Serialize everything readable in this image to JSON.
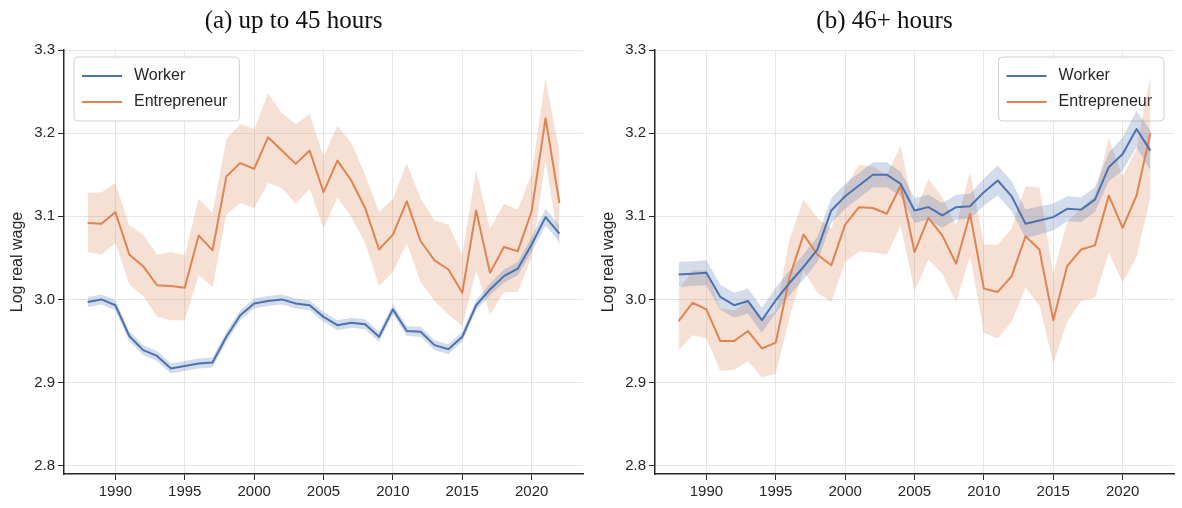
{
  "chart_data": [
    {
      "type": "line",
      "title": "(a) up to 45 hours",
      "ylabel": "Log real wage",
      "x": [
        1988,
        1989,
        1990,
        1991,
        1992,
        1993,
        1994,
        1995,
        1996,
        1997,
        1998,
        1999,
        2000,
        2001,
        2002,
        2003,
        2004,
        2005,
        2006,
        2007,
        2008,
        2009,
        2010,
        2011,
        2012,
        2013,
        2014,
        2015,
        2016,
        2017,
        2018,
        2019,
        2020,
        2021,
        2022
      ],
      "xlim": [
        1986.3,
        2023.7
      ],
      "xticks": [
        1990,
        1995,
        2000,
        2005,
        2010,
        2015,
        2020
      ],
      "ylim": [
        2.79,
        3.3
      ],
      "yticks": [
        {
          "value": 2.8,
          "label": "2.8"
        },
        {
          "value": 2.9,
          "label": "2.9"
        },
        {
          "value": 3.0,
          "label": "3.0"
        },
        {
          "value": 3.1,
          "label": "3.1"
        },
        {
          "value": 3.2,
          "label": "3.2"
        },
        {
          "value": 3.3,
          "label": "3.3"
        }
      ],
      "grid": true,
      "legend": "top left",
      "marker": "none",
      "line_style": "solid",
      "series": [
        {
          "name": "Worker",
          "color": "#4c72b0",
          "values": [
            2.997,
            3.0,
            2.993,
            2.956,
            2.939,
            2.932,
            2.917,
            2.92,
            2.923,
            2.924,
            2.955,
            2.981,
            2.995,
            2.998,
            3.0,
            2.995,
            2.993,
            2.979,
            2.969,
            2.972,
            2.97,
            2.955,
            2.988,
            2.962,
            2.961,
            2.945,
            2.94,
            2.955,
            2.993,
            3.012,
            3.028,
            3.037,
            3.066,
            3.099,
            3.079
          ],
          "lower": [
            2.991,
            2.994,
            2.987,
            2.95,
            2.933,
            2.926,
            2.911,
            2.914,
            2.917,
            2.918,
            2.949,
            2.975,
            2.989,
            2.992,
            2.994,
            2.989,
            2.987,
            2.973,
            2.963,
            2.966,
            2.964,
            2.949,
            2.982,
            2.956,
            2.955,
            2.939,
            2.934,
            2.949,
            2.987,
            3.005,
            3.02,
            3.029,
            3.057,
            3.089,
            3.069
          ],
          "upper": [
            3.003,
            3.006,
            2.999,
            2.962,
            2.945,
            2.938,
            2.923,
            2.926,
            2.929,
            2.93,
            2.961,
            2.987,
            3.001,
            3.004,
            3.006,
            3.001,
            2.999,
            2.985,
            2.975,
            2.978,
            2.976,
            2.961,
            2.994,
            2.968,
            2.967,
            2.951,
            2.946,
            2.961,
            2.999,
            3.019,
            3.036,
            3.045,
            3.075,
            3.109,
            3.089
          ]
        },
        {
          "name": "Entrepreneur",
          "color": "#dd8452",
          "values": [
            3.092,
            3.091,
            3.105,
            3.054,
            3.04,
            3.017,
            3.016,
            3.014,
            3.077,
            3.059,
            3.148,
            3.164,
            3.157,
            3.195,
            3.179,
            3.163,
            3.179,
            3.129,
            3.167,
            3.143,
            3.11,
            3.06,
            3.078,
            3.118,
            3.07,
            3.047,
            3.036,
            3.008,
            3.107,
            3.032,
            3.063,
            3.058,
            3.106,
            3.218,
            3.116
          ],
          "lower": [
            3.057,
            3.054,
            3.068,
            3.018,
            3.004,
            2.979,
            2.975,
            2.975,
            3.029,
            3.015,
            3.102,
            3.116,
            3.11,
            3.14,
            3.134,
            3.115,
            3.133,
            3.085,
            3.123,
            3.099,
            3.068,
            3.016,
            3.033,
            3.067,
            3.021,
            2.998,
            2.982,
            2.968,
            3.035,
            2.982,
            3.009,
            3.009,
            3.05,
            3.168,
            3.06
          ],
          "upper": [
            3.128,
            3.129,
            3.14,
            3.089,
            3.078,
            3.054,
            3.057,
            3.053,
            3.121,
            3.104,
            3.193,
            3.211,
            3.205,
            3.248,
            3.224,
            3.211,
            3.223,
            3.172,
            3.209,
            3.188,
            3.15,
            3.105,
            3.121,
            3.164,
            3.121,
            3.095,
            3.09,
            3.054,
            3.155,
            3.085,
            3.115,
            3.108,
            3.151,
            3.266,
            3.177
          ]
        }
      ]
    },
    {
      "type": "line",
      "title": "(b) 46+ hours",
      "ylabel": "Log real wage",
      "x": [
        1988,
        1989,
        1990,
        1991,
        1992,
        1993,
        1994,
        1995,
        1996,
        1997,
        1998,
        1999,
        2000,
        2001,
        2002,
        2003,
        2004,
        2005,
        2006,
        2007,
        2008,
        2009,
        2010,
        2011,
        2012,
        2013,
        2014,
        2015,
        2016,
        2017,
        2018,
        2019,
        2020,
        2021,
        2022
      ],
      "xlim": [
        1986.3,
        2023.7
      ],
      "xticks": [
        1990,
        1995,
        2000,
        2005,
        2010,
        2015,
        2020
      ],
      "ylim": [
        2.79,
        3.3
      ],
      "yticks": [
        {
          "value": 2.8,
          "label": "2.8"
        },
        {
          "value": 2.9,
          "label": "2.9"
        },
        {
          "value": 3.0,
          "label": "3.0"
        },
        {
          "value": 3.1,
          "label": "3.1"
        },
        {
          "value": 3.2,
          "label": "3.2"
        },
        {
          "value": 3.3,
          "label": "3.3"
        }
      ],
      "grid": true,
      "legend": "top right",
      "marker": "none",
      "line_style": "solid",
      "series": [
        {
          "name": "Worker",
          "color": "#4c72b0",
          "values": [
            3.03,
            3.031,
            3.032,
            3.003,
            2.993,
            2.998,
            2.975,
            2.999,
            3.02,
            3.039,
            3.06,
            3.107,
            3.124,
            3.137,
            3.15,
            3.15,
            3.139,
            3.107,
            3.111,
            3.101,
            3.111,
            3.112,
            3.129,
            3.143,
            3.124,
            3.091,
            3.095,
            3.099,
            3.109,
            3.108,
            3.12,
            3.159,
            3.175,
            3.205,
            3.179
          ],
          "lower": [
            3.015,
            3.016,
            3.017,
            2.988,
            2.978,
            2.983,
            2.96,
            2.984,
            3.005,
            3.024,
            3.045,
            3.092,
            3.109,
            3.122,
            3.135,
            3.135,
            3.124,
            3.092,
            3.096,
            3.086,
            3.096,
            3.097,
            3.113,
            3.125,
            3.106,
            3.074,
            3.078,
            3.083,
            3.094,
            3.093,
            3.105,
            3.142,
            3.155,
            3.183,
            3.155
          ],
          "upper": [
            3.045,
            3.046,
            3.047,
            3.018,
            3.008,
            3.013,
            2.99,
            3.014,
            3.035,
            3.054,
            3.075,
            3.122,
            3.139,
            3.152,
            3.165,
            3.165,
            3.154,
            3.122,
            3.126,
            3.116,
            3.126,
            3.127,
            3.145,
            3.161,
            3.142,
            3.108,
            3.112,
            3.115,
            3.124,
            3.123,
            3.135,
            3.176,
            3.195,
            3.227,
            3.203
          ]
        },
        {
          "name": "Entrepreneur",
          "color": "#dd8452",
          "values": [
            2.974,
            2.996,
            2.988,
            2.95,
            2.95,
            2.962,
            2.941,
            2.948,
            3.027,
            3.078,
            3.054,
            3.041,
            3.09,
            3.111,
            3.11,
            3.103,
            3.137,
            3.057,
            3.098,
            3.077,
            3.043,
            3.103,
            3.013,
            3.009,
            3.028,
            3.076,
            3.06,
            2.975,
            3.04,
            3.06,
            3.065,
            3.125,
            3.086,
            3.125,
            3.2
          ],
          "lower": [
            2.939,
            2.957,
            2.953,
            2.914,
            2.915,
            2.926,
            2.906,
            2.911,
            2.979,
            3.035,
            3.008,
            2.997,
            3.045,
            3.058,
            3.056,
            3.054,
            3.089,
            3.01,
            3.048,
            3.031,
            2.997,
            3.052,
            2.96,
            2.953,
            2.973,
            3.014,
            2.993,
            2.923,
            2.973,
            2.998,
            3.002,
            3.056,
            3.02,
            3.051,
            3.123
          ],
          "upper": [
            3.012,
            3.035,
            3.035,
            2.989,
            2.987,
            2.998,
            2.977,
            2.985,
            3.073,
            3.12,
            3.098,
            3.085,
            3.135,
            3.162,
            3.16,
            3.15,
            3.185,
            3.102,
            3.145,
            3.123,
            3.089,
            3.154,
            3.066,
            3.066,
            3.085,
            3.136,
            3.135,
            3.031,
            3.093,
            3.11,
            3.125,
            3.194,
            3.148,
            3.181,
            3.27
          ]
        }
      ]
    }
  ]
}
